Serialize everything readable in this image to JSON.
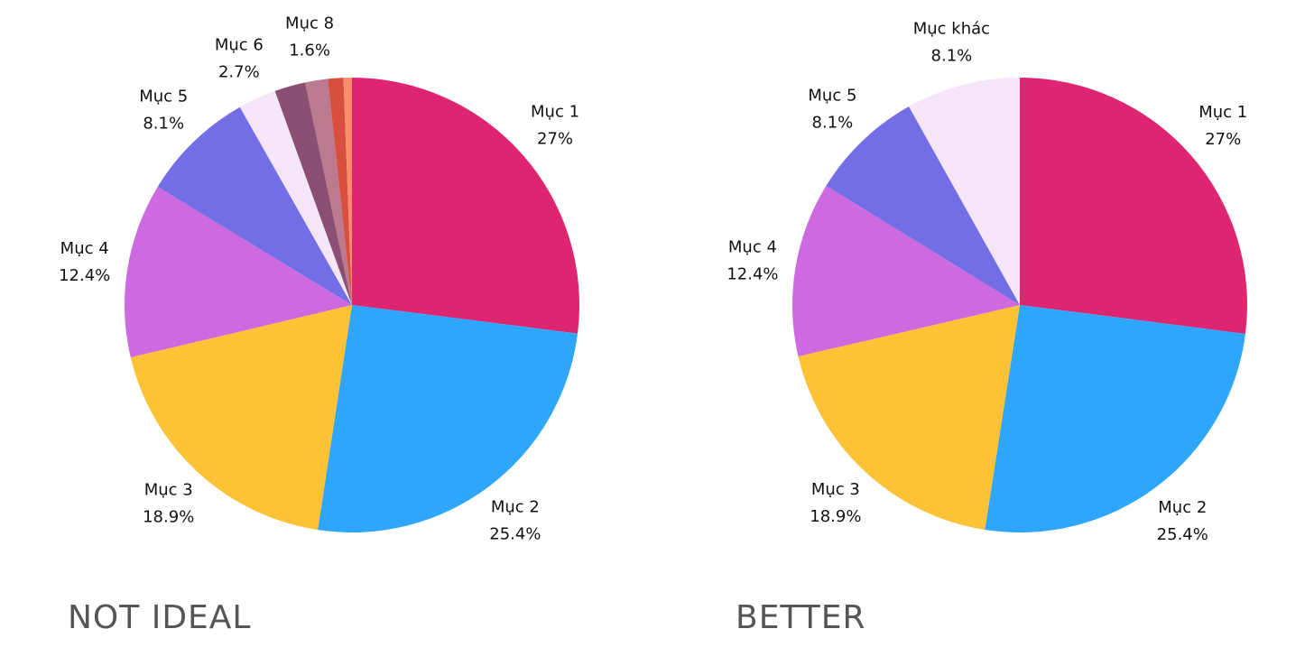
{
  "chart_data": [
    {
      "type": "pie",
      "title": "NOT IDEAL",
      "categories": [
        "Mục 1",
        "Mục 2",
        "Mục 3",
        "Mục 4",
        "Mục 5",
        "Mục 6",
        null,
        "Mục 8",
        null,
        null
      ],
      "values": [
        27,
        25.4,
        18.9,
        12.4,
        8.1,
        2.7,
        2.2,
        1.6,
        1.1,
        0.6
      ],
      "value_labels": [
        "27%",
        "25.4%",
        "18.9%",
        "12.4%",
        "8.1%",
        "2.7%",
        null,
        "1.6%",
        null,
        null
      ],
      "colors": [
        "#de2572",
        "#2ea6fc",
        "#fec236",
        "#cd6ae0",
        "#736ee6",
        "#f4e5f9",
        "#8a4f72",
        "#bb7a8d",
        "#d94f3f",
        "#fb8d6d"
      ]
    },
    {
      "type": "pie",
      "title": "BETTER",
      "categories": [
        "Mục 1",
        "Mục 2",
        "Mục 3",
        "Mục 4",
        "Mục 5",
        "Mục khác"
      ],
      "values": [
        27,
        25.4,
        18.9,
        12.4,
        8.1,
        8.1
      ],
      "value_labels": [
        "27%",
        "25.4%",
        "18.9%",
        "12.4%",
        "8.1%",
        "8.1%"
      ],
      "colors": [
        "#de2572",
        "#2ea6fc",
        "#fec236",
        "#cd6ae0",
        "#736ee6",
        "#f4e5f9"
      ]
    }
  ]
}
